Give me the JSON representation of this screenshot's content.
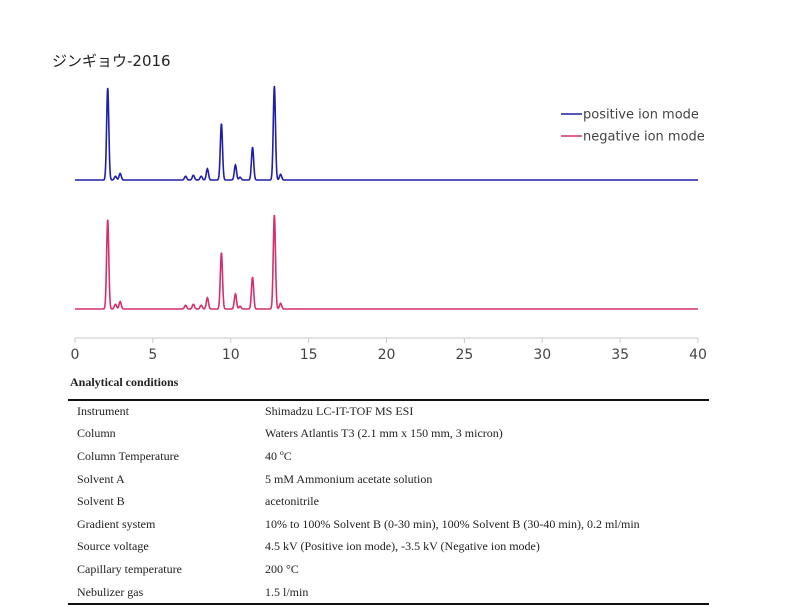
{
  "title": "ジンギョウ-2016",
  "chart_data": {
    "type": "line",
    "x_axis": {
      "min": 0,
      "max": 40,
      "ticks": [
        0,
        5,
        10,
        15,
        20,
        25,
        30,
        35,
        40
      ]
    },
    "y_axis": {
      "shown": false,
      "min": 0,
      "max": 1
    },
    "grid": false,
    "legend_position": "top-right",
    "series": [
      {
        "name": "positive ion mode",
        "color": "#1f1fa8",
        "peaks": [
          {
            "x": 2.1,
            "y": 0.98
          },
          {
            "x": 2.6,
            "y": 0.04
          },
          {
            "x": 2.9,
            "y": 0.07
          },
          {
            "x": 7.1,
            "y": 0.04
          },
          {
            "x": 7.6,
            "y": 0.05
          },
          {
            "x": 8.1,
            "y": 0.04
          },
          {
            "x": 8.5,
            "y": 0.12
          },
          {
            "x": 9.4,
            "y": 0.6
          },
          {
            "x": 10.3,
            "y": 0.16
          },
          {
            "x": 10.6,
            "y": 0.03
          },
          {
            "x": 11.4,
            "y": 0.35
          },
          {
            "x": 12.8,
            "y": 1.0
          },
          {
            "x": 13.2,
            "y": 0.06
          }
        ]
      },
      {
        "name": "negative ion mode",
        "color": "#d4306e",
        "peaks": [
          {
            "x": 2.1,
            "y": 0.95
          },
          {
            "x": 2.6,
            "y": 0.05
          },
          {
            "x": 2.9,
            "y": 0.08
          },
          {
            "x": 7.1,
            "y": 0.04
          },
          {
            "x": 7.6,
            "y": 0.05
          },
          {
            "x": 8.1,
            "y": 0.04
          },
          {
            "x": 8.5,
            "y": 0.12
          },
          {
            "x": 9.4,
            "y": 0.6
          },
          {
            "x": 10.3,
            "y": 0.16
          },
          {
            "x": 10.6,
            "y": 0.03
          },
          {
            "x": 11.4,
            "y": 0.34
          },
          {
            "x": 12.8,
            "y": 1.0
          },
          {
            "x": 13.2,
            "y": 0.06
          }
        ]
      }
    ]
  },
  "conditions": {
    "heading": "Analytical conditions",
    "rows": [
      {
        "label": "Instrument",
        "value": "Shimadzu LC-IT-TOF MS ESI"
      },
      {
        "label": "Column",
        "value": "Waters Atlantis T3 (2.1 mm x 150 mm, 3 micron)"
      },
      {
        "label": "Column Temperature",
        "value": "40 ºC"
      },
      {
        "label": "Solvent A",
        "value": "5 mM Ammonium acetate solution"
      },
      {
        "label": "Solvent B",
        "value": "acetonitrile"
      },
      {
        "label": "Gradient system",
        "value": "10% to 100% Solvent B (0-30 min), 100% Solvent B (30-40 min), 0.2 ml/min"
      },
      {
        "label": "Source voltage",
        "value": "4.5 kV (Positive ion mode), -3.5 kV (Negative ion mode)"
      },
      {
        "label": "Capillary temperature",
        "value": "200 °C"
      },
      {
        "label": "Nebulizer gas",
        "value": "1.5 l/min"
      }
    ]
  }
}
